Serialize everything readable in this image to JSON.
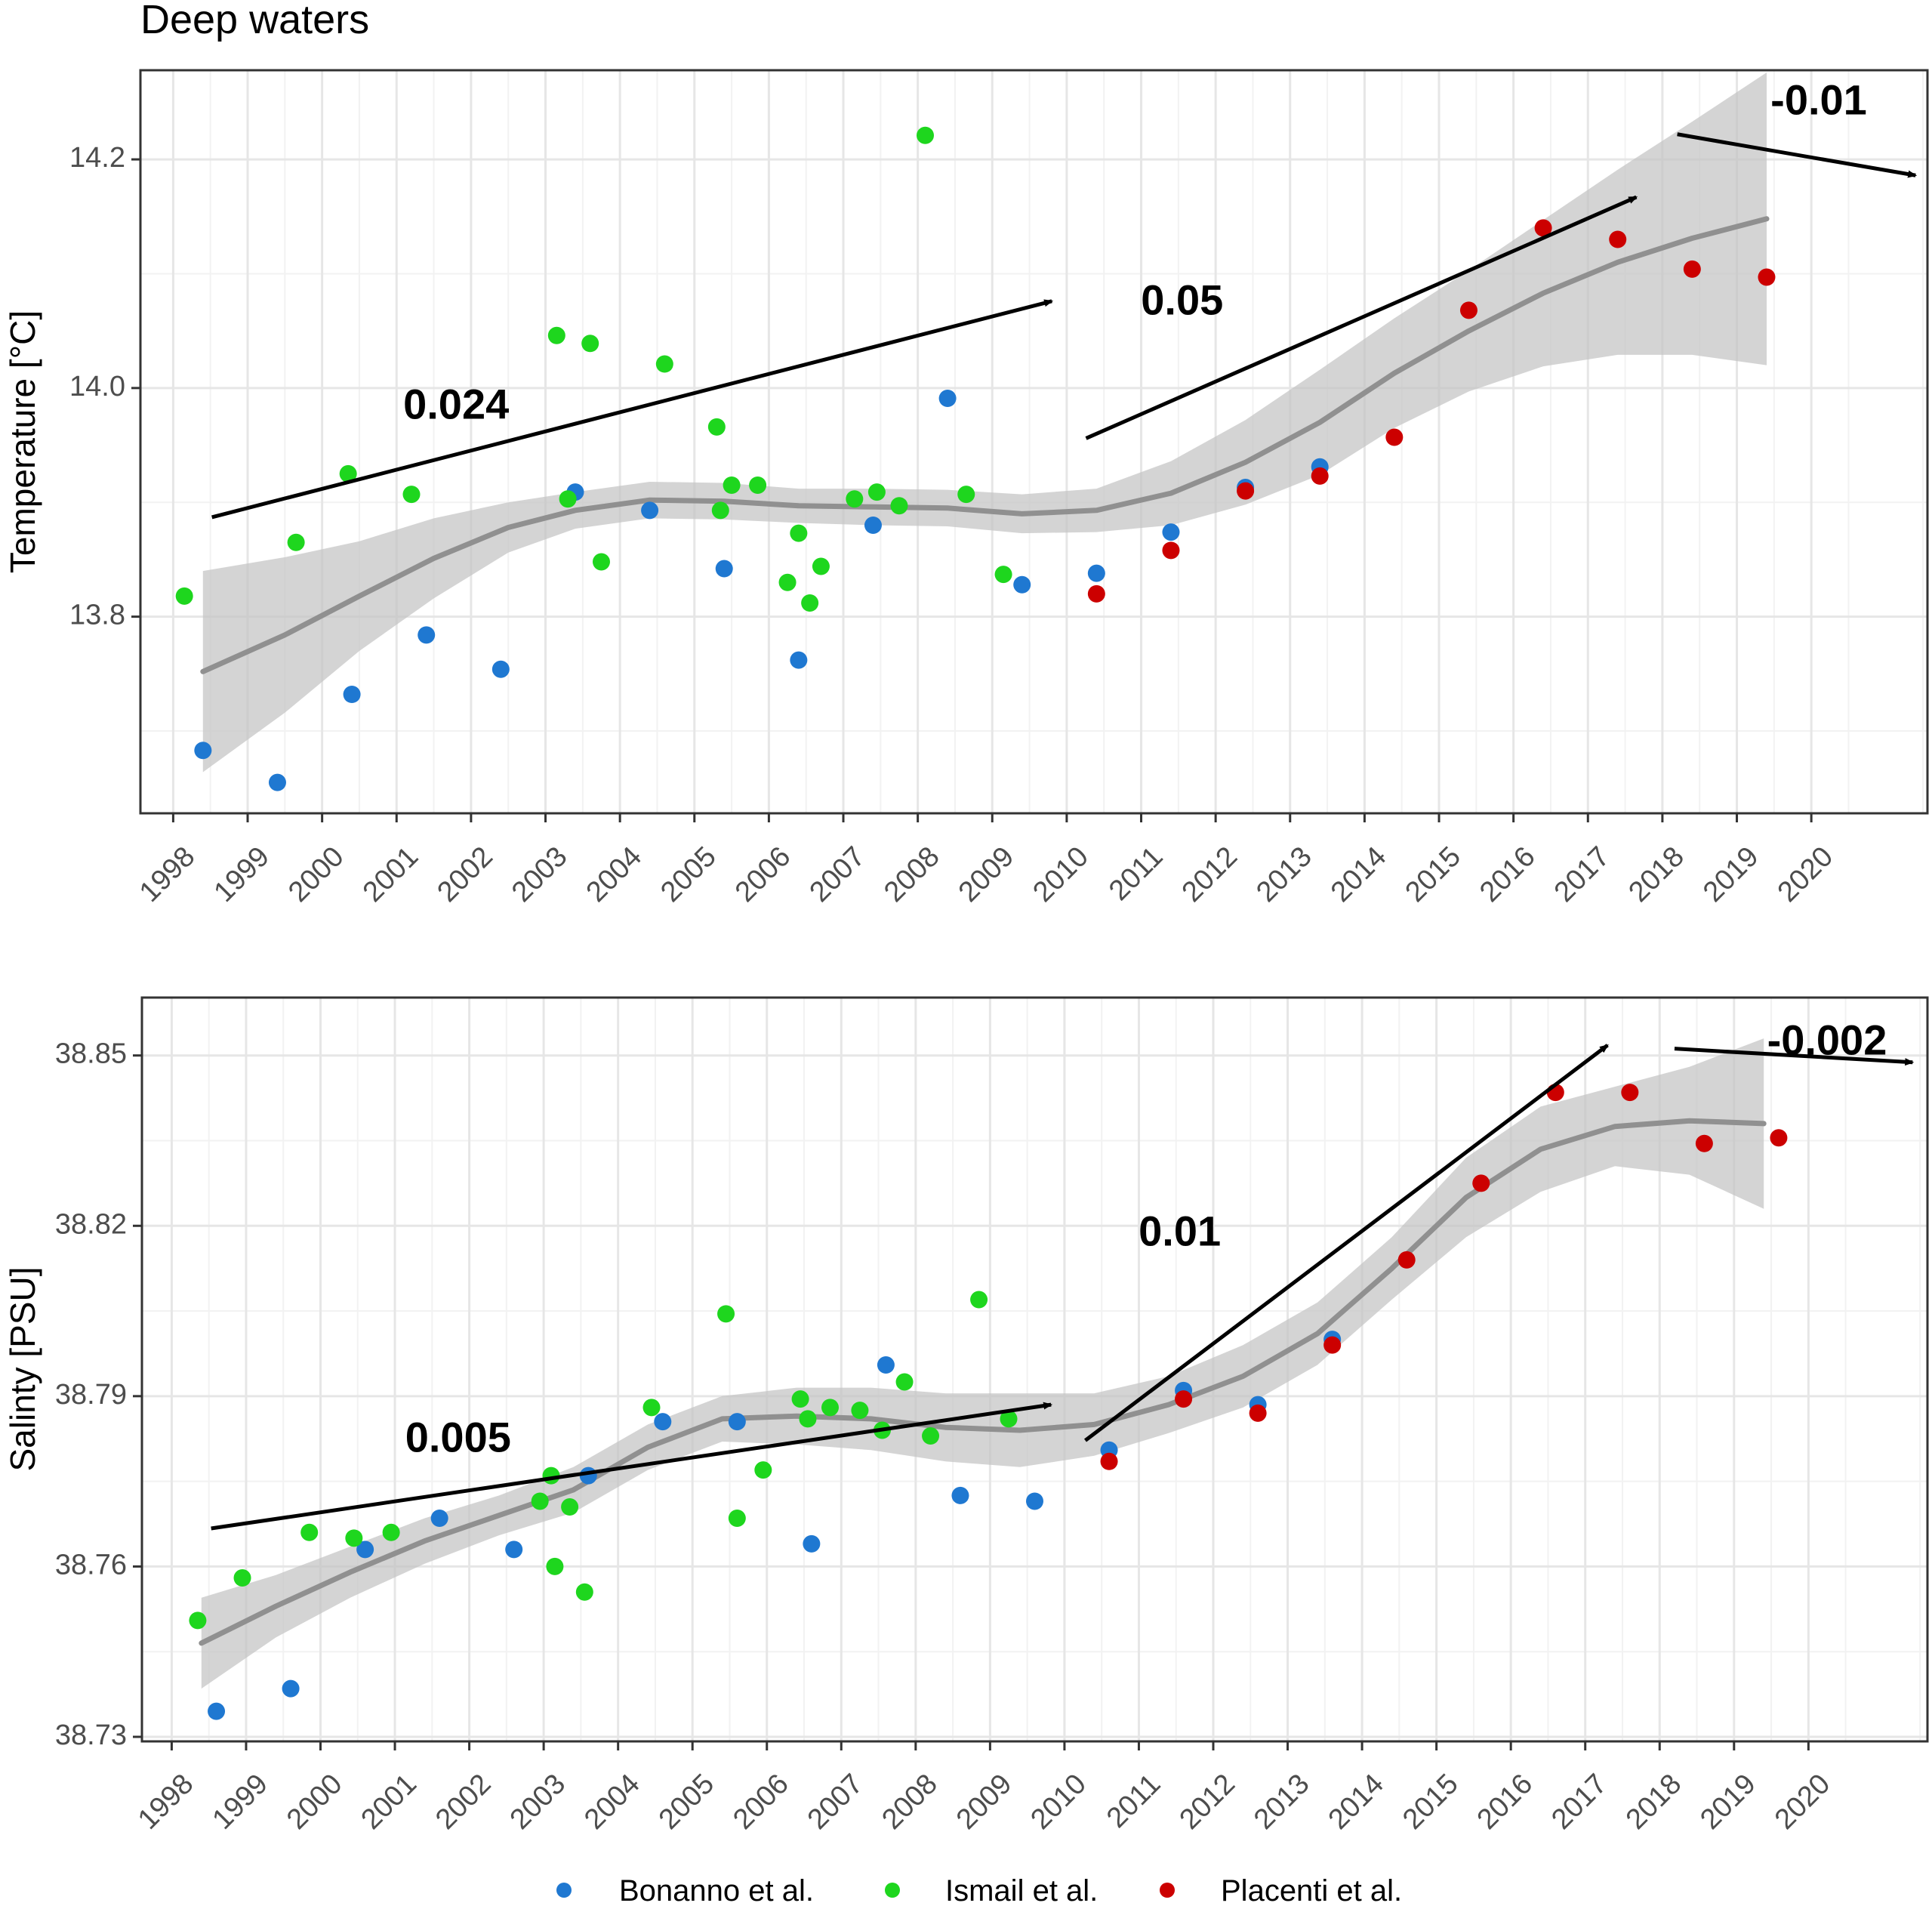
{
  "chart_data": {
    "type": "scatter",
    "title": "Deep waters",
    "legend": {
      "placement": "bottom",
      "entries": [
        {
          "name": "Bonanno et al.",
          "color": "#1f78d1"
        },
        {
          "name": "Ismail et al.",
          "color": "#1ed61e"
        },
        {
          "name": "Placenti et al.",
          "color": "#cc0000"
        }
      ]
    },
    "x_tick_labels": [
      "1998",
      "1999",
      "2000",
      "2001",
      "2002",
      "2003",
      "2004",
      "2005",
      "2006",
      "2007",
      "2008",
      "2009",
      "2010",
      "2011",
      "2012",
      "2013",
      "2014",
      "2015",
      "2016",
      "2017",
      "2018",
      "2019",
      "2020"
    ],
    "panels": [
      {
        "ylabel": "Temperature [°C]",
        "ylim": [
          13.628,
          14.278
        ],
        "yticks": [
          13.8,
          14.0,
          14.2
        ],
        "ytick_labels": [
          "13.8",
          "14.0",
          "14.2"
        ],
        "xlim": [
          1997.56,
          2021.56
        ],
        "series": [
          {
            "name": "Bonanno et al.",
            "color": "#1f78d1",
            "x": [
              1998.4,
              1999.4,
              2000.4,
              2001.4,
              2002.4,
              2003.4,
              2004.4,
              2005.4,
              2006.4,
              2007.4,
              2008.4,
              2009.4,
              2010.4,
              2011.4,
              2012.4,
              2013.4
            ],
            "y": [
              13.683,
              13.655,
              13.732,
              13.784,
              13.754,
              13.909,
              13.893,
              13.842,
              13.762,
              13.88,
              13.991,
              13.828,
              13.838,
              13.874,
              13.913,
              13.931
            ]
          },
          {
            "name": "Ismail et al.",
            "color": "#1ed61e",
            "x": [
              1998.15,
              1999.65,
              2000.35,
              2001.2,
              2003.15,
              2003.3,
              2003.6,
              2003.75,
              2004.6,
              2005.3,
              2005.35,
              2005.5,
              2005.85,
              2006.25,
              2006.4,
              2006.55,
              2006.7,
              2007.15,
              2007.45,
              2007.75,
              2008.1,
              2008.65,
              2009.15
            ],
            "y": [
              13.818,
              13.865,
              13.925,
              13.907,
              14.046,
              13.903,
              14.039,
              13.848,
              14.021,
              13.966,
              13.893,
              13.915,
              13.915,
              13.83,
              13.873,
              13.812,
              13.844,
              13.903,
              13.909,
              13.897,
              14.221,
              13.907,
              13.837
            ]
          },
          {
            "name": "Placenti et al.",
            "color": "#cc0000",
            "x": [
              2010.4,
              2011.4,
              2012.4,
              2013.4,
              2014.4,
              2015.4,
              2016.4,
              2017.4,
              2018.4,
              2019.4
            ],
            "y": [
              13.82,
              13.858,
              13.91,
              13.923,
              13.957,
              14.068,
              14.14,
              14.13,
              14.104,
              14.097
            ]
          }
        ],
        "smooth": {
          "x": [
            1998.4,
            1999.5,
            2000.5,
            2001.5,
            2002.5,
            2003.4,
            2004.4,
            2005.4,
            2006.4,
            2007.4,
            2008.4,
            2009.4,
            2010.4,
            2011.4,
            2012.4,
            2013.4,
            2014.4,
            2015.4,
            2016.4,
            2017.4,
            2018.4,
            2019.4
          ],
          "y": [
            13.752,
            13.784,
            13.818,
            13.851,
            13.878,
            13.893,
            13.902,
            13.901,
            13.897,
            13.896,
            13.895,
            13.89,
            13.893,
            13.908,
            13.935,
            13.97,
            14.013,
            14.05,
            14.083,
            14.11,
            14.131,
            14.148
          ],
          "upper": [
            13.84,
            13.852,
            13.866,
            13.886,
            13.9,
            13.909,
            13.918,
            13.917,
            13.912,
            13.912,
            13.911,
            13.907,
            13.912,
            13.936,
            13.972,
            14.016,
            14.061,
            14.103,
            14.147,
            14.191,
            14.233,
            14.276
          ],
          "lower": [
            13.664,
            13.716,
            13.77,
            13.816,
            13.856,
            13.877,
            13.886,
            13.885,
            13.882,
            13.88,
            13.879,
            13.873,
            13.874,
            13.88,
            13.898,
            13.924,
            13.965,
            13.997,
            14.019,
            14.029,
            14.029,
            14.02
          ]
        },
        "trend_arrows": [
          {
            "label": "0.024",
            "x0": 1998.52,
            "y0": 13.887,
            "x1": 2009.8,
            "y1": 14.076,
            "lx": 2001.8,
            "ly": 13.983
          },
          {
            "label": "0.05",
            "x0": 2010.26,
            "y0": 13.956,
            "x1": 2017.65,
            "y1": 14.167,
            "lx": 2011.55,
            "ly": 14.074
          },
          {
            "label": "-0.01",
            "x0": 2018.2,
            "y0": 14.222,
            "x1": 2021.4,
            "y1": 14.186,
            "lx": 2020.1,
            "ly": 14.249
          }
        ]
      },
      {
        "ylabel": "Salinty [PSU]",
        "ylim": [
          38.7292,
          38.8602
        ],
        "yticks": [
          38.73,
          38.76,
          38.79,
          38.82,
          38.85
        ],
        "ytick_labels": [
          "38.73",
          "38.76",
          "38.79",
          "38.82",
          "38.85"
        ],
        "xlim": [
          1997.6,
          2021.6
        ],
        "series": [
          {
            "name": "Bonanno et al.",
            "color": "#1f78d1",
            "x": [
              1998.6,
              1999.6,
              2000.6,
              2001.6,
              2002.6,
              2003.6,
              2004.6,
              2005.6,
              2006.6,
              2007.6,
              2008.6,
              2009.6,
              2010.6,
              2011.6,
              2012.6,
              2013.6
            ],
            "y": [
              38.7345,
              38.7385,
              38.763,
              38.7685,
              38.763,
              38.776,
              38.7855,
              38.7855,
              38.764,
              38.7955,
              38.7725,
              38.7715,
              38.7805,
              38.791,
              38.7885,
              38.8
            ]
          },
          {
            "name": "Ismail et al.",
            "color": "#1ed61e",
            "x": [
              1998.35,
              1998.95,
              1999.85,
              2000.45,
              2000.95,
              2002.95,
              2003.1,
              2003.15,
              2003.35,
              2003.55,
              2004.45,
              2005.45,
              2005.6,
              2005.95,
              2006.45,
              2006.55,
              2006.85,
              2007.25,
              2007.55,
              2007.85,
              2008.2,
              2008.85,
              2009.25
            ],
            "y": [
              38.7505,
              38.758,
              38.766,
              38.765,
              38.766,
              38.7715,
              38.776,
              38.76,
              38.7705,
              38.7555,
              38.788,
              38.8045,
              38.7685,
              38.777,
              38.7895,
              38.786,
              38.788,
              38.7875,
              38.784,
              38.7925,
              38.783,
              38.807,
              38.786
            ]
          },
          {
            "name": "Placenti et al.",
            "color": "#cc0000",
            "x": [
              2010.6,
              2011.6,
              2012.6,
              2013.6,
              2014.6,
              2015.6,
              2016.6,
              2017.6,
              2018.6,
              2019.6
            ],
            "y": [
              38.7785,
              38.7895,
              38.787,
              38.799,
              38.814,
              38.8275,
              38.8435,
              38.8435,
              38.8345,
              38.8355
            ]
          }
        ],
        "smooth": {
          "x": [
            1998.4,
            1999.4,
            2000.4,
            2001.4,
            2002.4,
            2003.4,
            2004.4,
            2005.4,
            2006.4,
            2007.4,
            2008.4,
            2009.4,
            2010.4,
            2011.4,
            2012.4,
            2013.4,
            2014.4,
            2015.4,
            2016.4,
            2017.4,
            2018.4,
            2019.4
          ],
          "y": [
            38.7465,
            38.753,
            38.759,
            38.7645,
            38.769,
            38.7735,
            38.781,
            38.786,
            38.7865,
            38.786,
            38.7845,
            38.784,
            38.785,
            38.7885,
            38.7935,
            38.801,
            38.8125,
            38.825,
            38.8335,
            38.8375,
            38.8385,
            38.838
          ],
          "upper": [
            38.7545,
            38.7585,
            38.7635,
            38.7685,
            38.7725,
            38.7775,
            38.785,
            38.79,
            38.7915,
            38.7915,
            38.7905,
            38.7905,
            38.7905,
            38.7935,
            38.799,
            38.8065,
            38.818,
            38.832,
            38.841,
            38.8445,
            38.848,
            38.853
          ],
          "lower": [
            38.7385,
            38.7475,
            38.7545,
            38.7605,
            38.7655,
            38.7695,
            38.777,
            38.782,
            38.7815,
            38.7805,
            38.7785,
            38.7775,
            38.7795,
            38.7835,
            38.788,
            38.7955,
            38.807,
            38.818,
            38.826,
            38.8305,
            38.829,
            38.823
          ]
        },
        "trend_arrows": [
          {
            "label": "0.005",
            "x0": 1998.53,
            "y0": 38.7667,
            "x1": 2009.82,
            "y1": 38.7885,
            "lx": 2001.85,
            "ly": 38.7822
          },
          {
            "label": "0.01",
            "x0": 2010.28,
            "y0": 38.7822,
            "x1": 2017.3,
            "y1": 38.8518,
            "lx": 2011.55,
            "ly": 38.8185
          },
          {
            "label": "-0.002",
            "x0": 2018.2,
            "y0": 38.8512,
            "x1": 2021.4,
            "y1": 38.8488,
            "lx": 2020.25,
            "ly": 38.8521
          }
        ]
      }
    ]
  }
}
